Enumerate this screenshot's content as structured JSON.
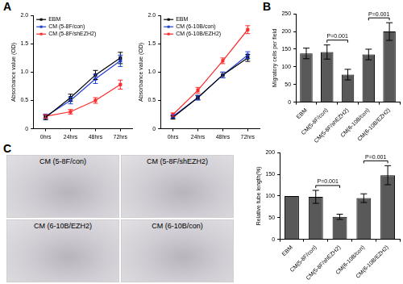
{
  "panel_labels": [
    "A",
    "B",
    "C"
  ],
  "chart_data": [
    {
      "type": "line",
      "y_label": "Absorbance value (OD)",
      "categories": [
        "0hrs",
        "24hrs",
        "48hrs",
        "72hrs"
      ],
      "ylim": [
        0,
        2
      ],
      "yticks": [
        0,
        0.5,
        {
          "value": 1,
          "label": "1.0"
        },
        1.5,
        {
          "value": 2,
          "label": "2.0"
        }
      ],
      "grid": false,
      "legend": "upper left",
      "marker": "square",
      "series": [
        {
          "name": "EBM",
          "color": "#000000",
          "values": [
            0.2,
            0.55,
            0.95,
            1.25
          ],
          "errors": [
            0.04,
            0.06,
            0.08,
            0.1
          ]
        },
        {
          "name": "CM (5-8F/con)",
          "color": "#1f3fd6",
          "values": [
            0.22,
            0.5,
            0.88,
            1.2
          ],
          "errors": [
            0.04,
            0.06,
            0.08,
            0.1
          ]
        },
        {
          "name": "CM (5-8F/shEZH2)",
          "color": "#ff2a2a",
          "values": [
            0.22,
            0.3,
            0.5,
            0.78
          ],
          "errors": [
            0.03,
            0.04,
            0.05,
            0.08
          ]
        }
      ]
    },
    {
      "type": "line",
      "y_label": "Absorbance value (OD)",
      "categories": [
        "0hrs",
        "24hrs",
        "48hrs",
        "72hrs"
      ],
      "ylim": [
        0,
        2
      ],
      "yticks": [
        0,
        0.5,
        {
          "value": 1,
          "label": "1.0"
        },
        1.5,
        {
          "value": 2,
          "label": "2.0"
        }
      ],
      "grid": false,
      "legend": "upper left",
      "marker": "square",
      "series": [
        {
          "name": "EBM",
          "color": "#000000",
          "values": [
            0.2,
            0.55,
            0.95,
            1.25
          ],
          "errors": [
            0.03,
            0.04,
            0.05,
            0.06
          ]
        },
        {
          "name": "CM (6-10B/con)",
          "color": "#1f3fd6",
          "values": [
            0.22,
            0.55,
            0.95,
            1.3
          ],
          "errors": [
            0.03,
            0.04,
            0.05,
            0.06
          ]
        },
        {
          "name": "CM (6-10B/EZH2)",
          "color": "#ff2a2a",
          "values": [
            0.25,
            0.68,
            1.2,
            1.75
          ],
          "errors": [
            0.03,
            0.05,
            0.05,
            0.07
          ]
        }
      ]
    },
    {
      "type": "bar",
      "y_label": "Migratory cells per field",
      "categories": [
        "EBM",
        "CM(5-8F/con)",
        "CM(5-8F/shEZH2)",
        "CM(6-10B/con)",
        "CM(6-10B/EZH2)"
      ],
      "values": [
        138,
        142,
        78,
        135,
        200
      ],
      "errors": [
        15,
        20,
        15,
        15,
        25
      ],
      "color": "#595959",
      "ylim": [
        0,
        250
      ],
      "yticks": [
        0,
        50,
        100,
        150,
        200,
        250
      ],
      "grid": false,
      "annotations": [
        {
          "text": "P=0.001",
          "from": "CM(5-8F/con)",
          "to": "CM(5-8F/shEZH2)"
        },
        {
          "text": "P=0.001",
          "from": "CM(6-10B/con)",
          "to": "CM(6-10B/EZH2)"
        }
      ]
    },
    {
      "type": "bar",
      "y_label": "Relative tube length(%)",
      "categories": [
        "EBM",
        "CM(5-8F/con)",
        "CM(5-8F/shEZH2)",
        "CM(6-10B/con)",
        "CM(6-10B/EZH2)"
      ],
      "values": [
        100,
        98,
        52,
        95,
        148
      ],
      "errors": [
        0,
        15,
        6,
        10,
        22
      ],
      "color": "#595959",
      "ylim": [
        0,
        200
      ],
      "yticks": [
        0,
        50,
        100,
        150,
        200
      ],
      "grid": false,
      "annotations": [
        {
          "text": "P=0.001",
          "from": "CM(5-8F/con)",
          "to": "CM(5-8F/shEZH2)"
        },
        {
          "text": "P=0.001",
          "from": "CM(6-10B/con)",
          "to": "CM(6-10B/EZH2)"
        }
      ]
    }
  ],
  "images": [
    {
      "label": "CM (5-8F/con)"
    },
    {
      "label": "CM (5-8F/shEZH2)"
    },
    {
      "label": "CM (6-10B/EZH2)"
    },
    {
      "label": "CM (6-10B/con)"
    }
  ]
}
